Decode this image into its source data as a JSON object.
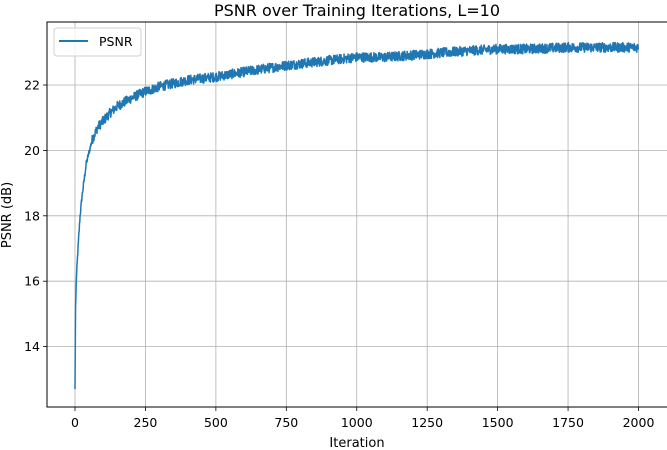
{
  "chart_data": {
    "type": "line",
    "title": "PSNR over Training Iterations, L=10",
    "xlabel": "Iteration",
    "ylabel": "PSNR (dB)",
    "xlim": [
      -100,
      2100
    ],
    "ylim": [
      12.2,
      23.8
    ],
    "xticks": [
      0,
      250,
      500,
      750,
      1000,
      1250,
      1500,
      1750,
      2000
    ],
    "xtick_labels": [
      "0",
      "250",
      "500",
      "750",
      "1000",
      "1250",
      "1500",
      "1750",
      "2000"
    ],
    "yticks": [
      14,
      16,
      18,
      20,
      22
    ],
    "ytick_labels": [
      "14",
      "16",
      "18",
      "20",
      "22"
    ],
    "grid": true,
    "legend": {
      "position": "upper left",
      "entries": [
        "PSNR"
      ]
    },
    "series": [
      {
        "name": "PSNR",
        "color": "#1f77b4",
        "x": [
          0,
          2,
          5,
          10,
          18,
          25,
          40,
          60,
          80,
          100,
          125,
          150,
          200,
          250,
          300,
          400,
          500,
          600,
          750,
          900,
          1000,
          1100,
          1250,
          1400,
          1500,
          1600,
          1750,
          1900,
          2000
        ],
        "y": [
          12.7,
          15.2,
          16.1,
          16.9,
          18.0,
          18.6,
          19.6,
          20.3,
          20.7,
          20.9,
          21.15,
          21.35,
          21.6,
          21.8,
          21.95,
          22.15,
          22.25,
          22.4,
          22.6,
          22.75,
          22.85,
          22.85,
          22.95,
          23.05,
          23.1,
          23.1,
          23.15,
          23.15,
          23.15
        ],
        "noise_amplitude_db": 0.15
      }
    ]
  },
  "colors": {
    "line": "#1f77b4",
    "grid": "#b0b0b0",
    "axes": "#000000",
    "legend_border": "#d0d0d0"
  }
}
